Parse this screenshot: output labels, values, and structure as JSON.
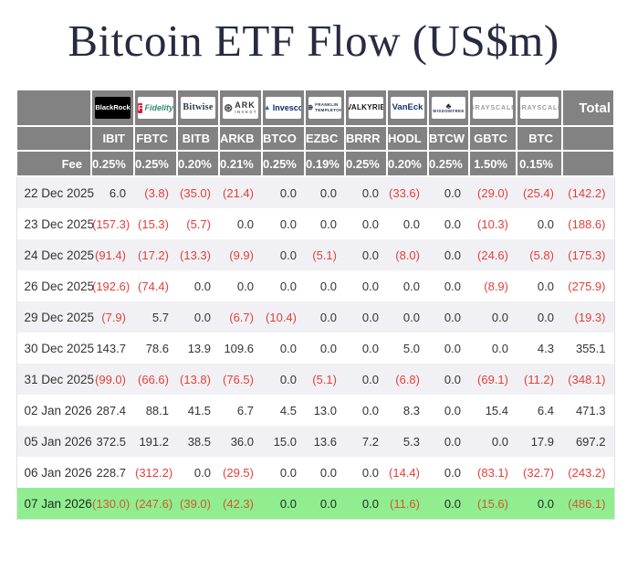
{
  "page": {
    "title": "Bitcoin ETF Flow (US$m)"
  },
  "table_labels": {
    "fee_row_label": "Fee",
    "total_label": "Total"
  },
  "colors": {
    "title": "#272b42",
    "header_bg": "#828282",
    "header_text": "#ffffff",
    "negative": "#e2403a",
    "positive": "#333333",
    "highlight_bg": "#90ee90",
    "highlight_negative": "#cf5a28",
    "stripe_bg": "#f1f1f5"
  },
  "chart_data": {
    "type": "table",
    "title": "Bitcoin ETF Flow (US$m)",
    "unit": "US$m",
    "negative_display": "parentheses-red",
    "categories": [
      "22 Dec 2025",
      "23 Dec 2025",
      "24 Dec 2025",
      "26 Dec 2025",
      "29 Dec 2025",
      "30 Dec 2025",
      "31 Dec 2025",
      "02 Jan 2026",
      "05 Jan 2026",
      "06 Jan 2026",
      "07 Jan 2026"
    ],
    "series": [
      {
        "name": "IBIT",
        "fee": "0.25%",
        "provider": {
          "id": "blackrock",
          "text": "BlackRock",
          "style": "blackrock"
        },
        "values": [
          6.0,
          -157.3,
          -91.4,
          -192.6,
          -7.9,
          143.7,
          -99.0,
          287.4,
          372.5,
          228.7,
          -130.0
        ]
      },
      {
        "name": "FBTC",
        "fee": "0.25%",
        "provider": {
          "id": "fidelity",
          "text": "Fidelity",
          "mark": "F",
          "style": "fidelity"
        },
        "values": [
          -3.8,
          -15.3,
          -17.2,
          -74.4,
          5.7,
          78.6,
          -66.6,
          88.1,
          191.2,
          -312.2,
          -247.6
        ]
      },
      {
        "name": "BITB",
        "fee": "0.20%",
        "provider": {
          "id": "bitwise",
          "text": "Bitwise",
          "style": "bitwise"
        },
        "values": [
          -35.0,
          -5.7,
          -13.3,
          0.0,
          0.0,
          13.9,
          -13.8,
          41.5,
          38.5,
          0.0,
          -39.0
        ]
      },
      {
        "name": "ARKB",
        "fee": "0.21%",
        "provider": {
          "id": "ark-invest",
          "text": "ARK",
          "sub": "INVEST",
          "mark": "⊛",
          "style": "ark"
        },
        "values": [
          -21.4,
          0.0,
          -9.9,
          0.0,
          -6.7,
          109.6,
          -76.5,
          6.7,
          36.0,
          -29.5,
          -42.3
        ]
      },
      {
        "name": "BTCO",
        "fee": "0.25%",
        "provider": {
          "id": "invesco",
          "text": "Invesco",
          "mark": "▲",
          "style": "invesco"
        },
        "values": [
          0.0,
          0.0,
          0.0,
          0.0,
          -10.4,
          0.0,
          0.0,
          4.5,
          15.0,
          0.0,
          0.0
        ]
      },
      {
        "name": "EZBC",
        "fee": "0.19%",
        "provider": {
          "id": "franklin-templeton",
          "text": "FRANKLIN",
          "sub": "TEMPLETON",
          "mark": "⊕",
          "style": "franklin"
        },
        "values": [
          0.0,
          0.0,
          -5.1,
          0.0,
          0.0,
          0.0,
          -5.1,
          13.0,
          13.6,
          0.0,
          0.0
        ]
      },
      {
        "name": "BRRR",
        "fee": "0.25%",
        "provider": {
          "id": "valkyrie",
          "text": "VALKYRIE",
          "style": "valkyrie"
        },
        "values": [
          0.0,
          0.0,
          0.0,
          0.0,
          0.0,
          0.0,
          0.0,
          0.0,
          7.2,
          0.0,
          0.0
        ]
      },
      {
        "name": "HODL",
        "fee": "0.20%",
        "provider": {
          "id": "vaneck",
          "text": "VanEck",
          "style": "vaneck"
        },
        "values": [
          -33.6,
          0.0,
          -8.0,
          0.0,
          0.0,
          5.0,
          -6.8,
          8.3,
          5.3,
          -14.4,
          -11.6
        ]
      },
      {
        "name": "BTCW",
        "fee": "0.25%",
        "provider": {
          "id": "wisdomtree",
          "text": "WISDOMTREE",
          "mark": "♣",
          "style": "wisdomtree"
        },
        "values": [
          0.0,
          0.0,
          0.0,
          0.0,
          0.0,
          0.0,
          0.0,
          0.0,
          0.0,
          0.0,
          0.0
        ]
      },
      {
        "name": "GBTC",
        "fee": "1.50%",
        "provider": {
          "id": "grayscale-gbtc",
          "text": "GRAYSCALE",
          "style": "grayscale"
        },
        "values": [
          -29.0,
          -10.3,
          -24.6,
          -8.9,
          0.0,
          0.0,
          -69.1,
          15.4,
          0.0,
          -83.1,
          -15.6
        ]
      },
      {
        "name": "BTC",
        "fee": "0.15%",
        "provider": {
          "id": "grayscale-btc",
          "text": "GRAYSCALE",
          "style": "grayscale"
        },
        "values": [
          -25.4,
          0.0,
          -5.8,
          0.0,
          0.0,
          4.3,
          -11.2,
          6.4,
          17.9,
          -32.7,
          0.0
        ]
      }
    ],
    "totals": [
      -142.2,
      -188.6,
      -175.3,
      -275.9,
      -19.3,
      355.1,
      -348.1,
      471.3,
      697.2,
      -243.2,
      -486.1
    ],
    "highlighted_row": "07 Jan 2026"
  }
}
